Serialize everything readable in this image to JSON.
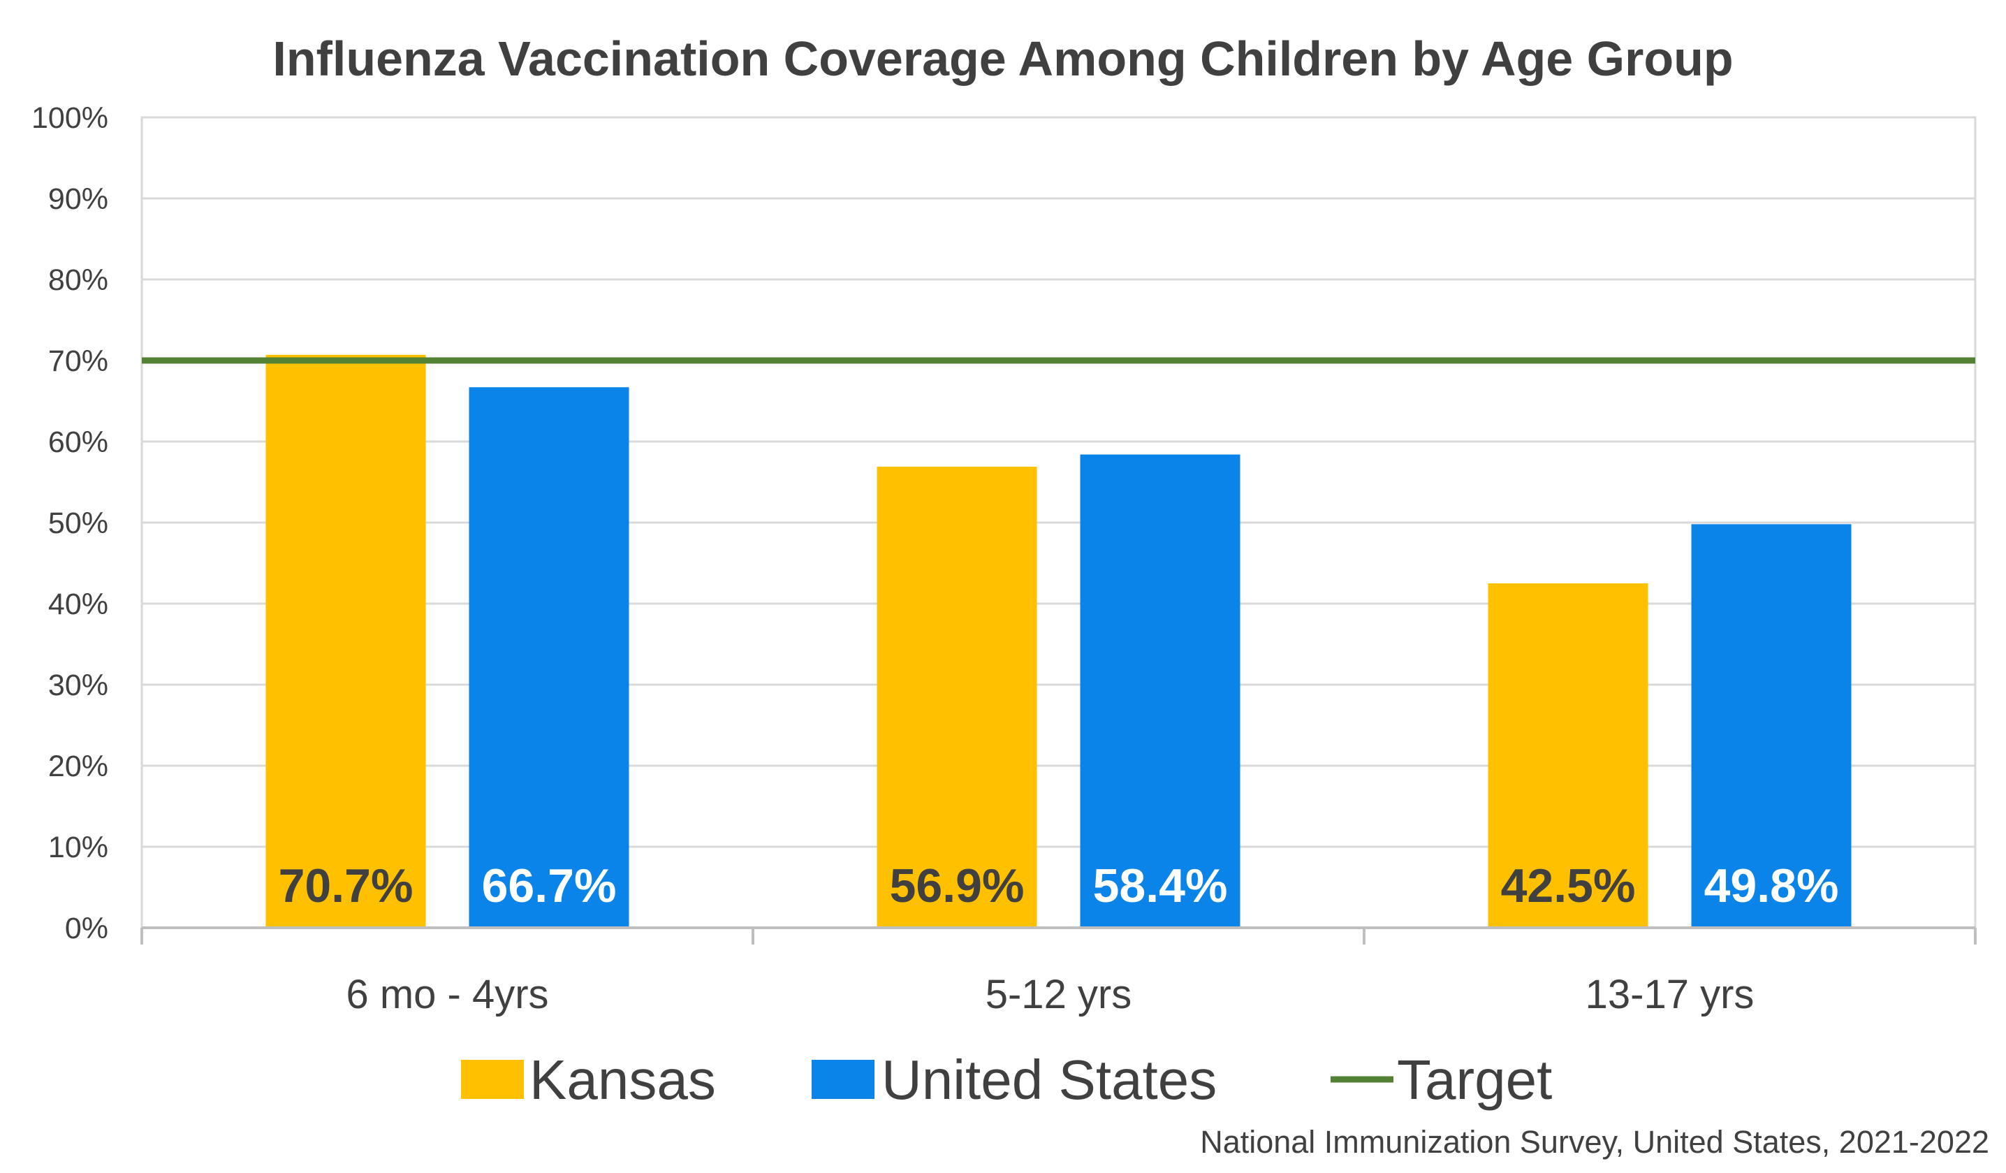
{
  "chart_data": {
    "type": "bar",
    "title": "Influenza Vaccination Coverage Among Children by Age Group",
    "categories": [
      "6 mo - 4yrs",
      "5-12 yrs",
      "13-17 yrs"
    ],
    "series": [
      {
        "name": "Kansas",
        "values": [
          70.7,
          56.9,
          42.5
        ],
        "labels": [
          "70.7%",
          "56.9%",
          "42.5%"
        ],
        "color": "#FFC000",
        "label_color": "#404040"
      },
      {
        "name": "United States",
        "values": [
          66.7,
          58.4,
          49.8
        ],
        "labels": [
          "66.7%",
          "58.4%",
          "49.8%"
        ],
        "color": "#0A84E8",
        "label_color": "#ffffff"
      }
    ],
    "reference_line": {
      "name": "Target",
      "value": 70,
      "color": "#548235"
    },
    "ylim": [
      0,
      100
    ],
    "yticks": [
      0,
      10,
      20,
      30,
      40,
      50,
      60,
      70,
      80,
      90,
      100
    ],
    "ytick_labels": [
      "0%",
      "10%",
      "20%",
      "30%",
      "40%",
      "50%",
      "60%",
      "70%",
      "80%",
      "90%",
      "100%"
    ],
    "grid": true,
    "legend": {
      "position": "bottom",
      "entries": [
        "Kansas",
        "United States",
        "Target"
      ]
    },
    "source_note": "National Immunization Survey, United States, 2021-2022",
    "colors": {
      "text": "#404040",
      "grid": "#d9d9d9",
      "axis": "#bfbfbf"
    }
  }
}
